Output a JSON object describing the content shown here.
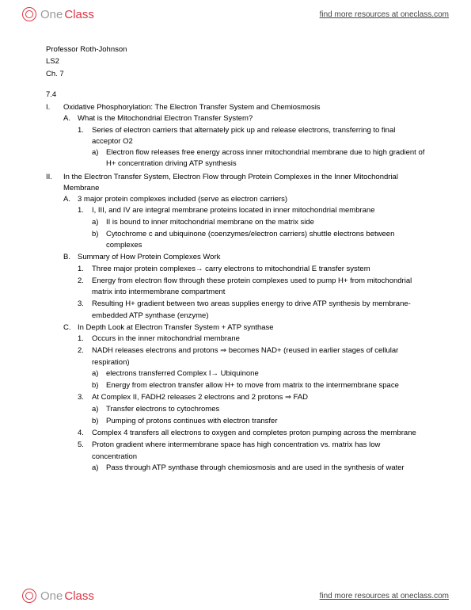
{
  "brand": {
    "one": "One",
    "class": "Class"
  },
  "resources": "find more resources at oneclass.com",
  "meta": {
    "prof": "Professor Roth-Johnson",
    "course": "LS2",
    "chapter": "Ch. 7"
  },
  "section": "7.4",
  "outline": {
    "I": {
      "title": "Oxidative Phosphorylation: The Electron Transfer System and Chemiosmosis",
      "A": {
        "title": "What is the Mitochondrial Electron Transfer System?",
        "1": {
          "text": "Series of electron carriers that alternately pick up and release electrons, transferring to final acceptor O2",
          "a": "Electron flow releases free energy across inner mitochondrial membrane due to high gradient of H+ concentration driving ATP synthesis"
        }
      }
    },
    "II": {
      "title": "In the Electron Transfer System, Electron Flow through Protein Complexes in the Inner Mitochondrial Membrane",
      "A": {
        "title": "3 major protein complexes included (serve as electron carriers)",
        "1": {
          "text": "I, III, and IV are integral membrane proteins located in inner mitochondrial membrane",
          "a": "II is bound to inner mitochondrial membrane on the matrix side",
          "b": "Cytochrome c and ubiquinone (coenzymes/electron carriers) shuttle electrons between complexes"
        }
      },
      "B": {
        "title": "Summary of How Protein Complexes Work",
        "1": "Three major protein complexes→ carry electrons to mitochondrial E transfer system",
        "2": "Energy from electron flow through these protein complexes used to pump H+ from mitochondrial matrix into intermembrane compartment",
        "3": "Resulting H+ gradient between two areas supplies energy to drive ATP synthesis by membrane-embedded ATP synthase (enzyme)"
      },
      "C": {
        "title": "In Depth Look at Electron Transfer System + ATP synthase",
        "1": "Occurs in the inner mitochondrial membrane",
        "2": {
          "text": "NADH releases electrons and protons ⇒ becomes NAD+ (reused in earlier stages of cellular respiration)",
          "a": "electrons transferred Complex I→ Ubiquinone",
          "b": "Energy from electron transfer allow H+ to move from matrix to the intermembrane space"
        },
        "3": {
          "text": "At Complex II, FADH2 releases 2 electrons and 2 protons ⇒ FAD",
          "a": "Transfer electrons to cytochromes",
          "b": "Pumping of protons continues with electron transfer"
        },
        "4": "Complex 4 transfers all electrons to oxygen and completes proton pumping across the membrane",
        "5": {
          "text": "Proton gradient where intermembrane space has high concentration vs. matrix has low concentration",
          "a": "Pass through ATP synthase through chemiosmosis and are used in the synthesis of water"
        }
      }
    }
  }
}
